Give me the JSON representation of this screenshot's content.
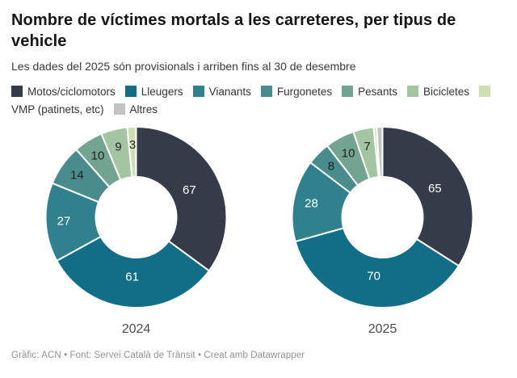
{
  "header": {
    "title": "Nombre de víctimes mortals a les carreteres, per tipus de vehicle",
    "subtitle": "Les dades del 2025 són provisionals i arriben fins al 30 de desembre"
  },
  "chart_data": {
    "type": "pie",
    "variant": "donut",
    "categories": [
      "Motos/ciclomotors",
      "Lleugers",
      "Vianants",
      "Furgonetes",
      "Pesants",
      "Bicicletes",
      "VMP (patinets, etc)",
      "Altres"
    ],
    "colors": [
      "#363b4a",
      "#126d86",
      "#31808d",
      "#4a8c8e",
      "#73a391",
      "#a3c5a1",
      "#cfdfb2",
      "#c3c3c3"
    ],
    "label_colors": [
      "#ffffff",
      "#ffffff",
      "#ffffff",
      "#222222",
      "#222222",
      "#222222",
      "#222222",
      "#222222"
    ],
    "series": [
      {
        "name": "2024",
        "values": [
          67,
          61,
          27,
          14,
          10,
          9,
          3,
          0
        ]
      },
      {
        "name": "2025",
        "values": [
          65,
          70,
          28,
          8,
          10,
          7,
          1,
          2
        ]
      }
    ],
    "start_angle_deg": 0,
    "direction": "clockwise",
    "label_min_value": 3,
    "legend_position": "top"
  },
  "footer": {
    "text": "Gràfic: ACN • Font: Servei Català de Trànsit • Creat amb Datawrapper"
  }
}
